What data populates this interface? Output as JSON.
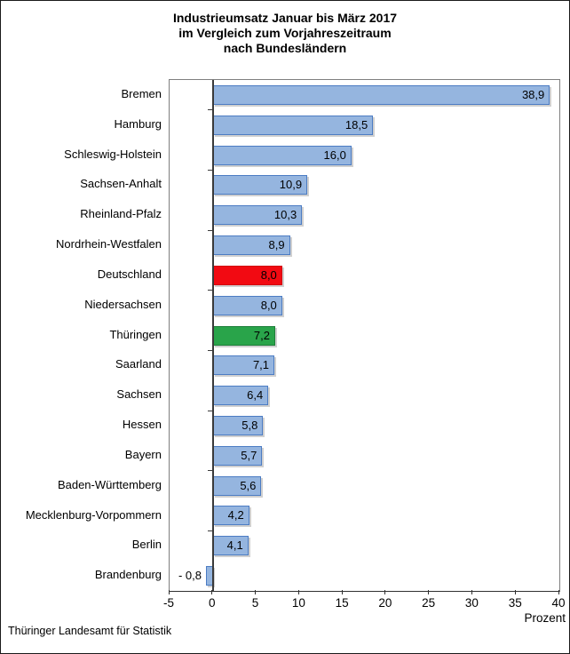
{
  "title": {
    "lines": [
      "Industrieumsatz Januar bis März 2017",
      "im Vergleich zum Vorjahreszeitraum",
      "nach Bundesländern"
    ]
  },
  "footer": "Thüringer Landesamt für Statistik",
  "chart_data": {
    "type": "bar",
    "orientation": "horizontal",
    "title": "Industrieumsatz Januar bis März 2017 im Vergleich zum Vorjahreszeitraum nach Bundesländern",
    "xlabel": "Prozent",
    "xlim": [
      -5,
      40
    ],
    "x_ticks": [
      -5,
      0,
      5,
      10,
      15,
      20,
      25,
      30,
      35,
      40
    ],
    "grid": false,
    "legend": false,
    "categories": [
      "Bremen",
      "Hamburg",
      "Schleswig-Holstein",
      "Sachsen-Anhalt",
      "Rheinland-Pfalz",
      "Nordrhein-Westfalen",
      "Deutschland",
      "Niedersachsen",
      "Thüringen",
      "Saarland",
      "Sachsen",
      "Hessen",
      "Bayern",
      "Baden-Württemberg",
      "Mecklenburg-Vorpommern",
      "Berlin",
      "Brandenburg"
    ],
    "values": [
      38.9,
      18.5,
      16.0,
      10.9,
      10.3,
      8.9,
      8.0,
      8.0,
      7.2,
      7.1,
      6.4,
      5.8,
      5.7,
      5.6,
      4.2,
      4.1,
      -0.8
    ],
    "value_labels": [
      "38,9",
      "18,5",
      "16,0",
      "10,9",
      "10,3",
      "8,9",
      "8,0",
      "8,0",
      "7,2",
      "7,1",
      "6,4",
      "5,8",
      "5,7",
      "5,6",
      "4,2",
      "4,1",
      "- 0,8"
    ],
    "bar_colors": [
      "blue",
      "blue",
      "blue",
      "blue",
      "blue",
      "blue",
      "red",
      "blue",
      "green",
      "blue",
      "blue",
      "blue",
      "blue",
      "blue",
      "blue",
      "blue",
      "blue"
    ],
    "palette": {
      "blue": {
        "fill": "#95B5DF",
        "border": "#4C7CC3"
      },
      "red": {
        "fill": "#F20A12",
        "border": "#D10910"
      },
      "green": {
        "fill": "#29A44A",
        "border": "#1E7E39"
      }
    },
    "axis_color": "#3A3A3A",
    "plot_border_color": "#7F7F7F"
  }
}
